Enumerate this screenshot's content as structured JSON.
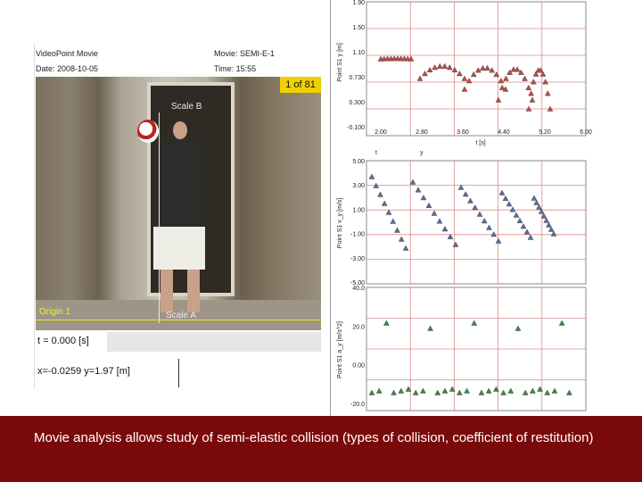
{
  "video": {
    "app_title": "VideoPoint Movie",
    "movie_label": "Movie: SEMI-E-1",
    "date_label": "Date: 2008-10-05",
    "time_label": "Time: 15:55",
    "frame_counter": "1 of 81",
    "scale_top": "Scale B",
    "scale_bottom": "Scale A",
    "origin": "Origin 1",
    "time_readout": "t = 0.000 [s]",
    "coord_readout": "x=-0.0259 y=1.97 [m]"
  },
  "graphs": {
    "top": {
      "ylabel": "Point S1 y [m]",
      "yticks": [
        "1.90",
        "1.50",
        "1.10",
        "0.730",
        "0.300",
        "-0.100"
      ],
      "xticks": [
        "2.00",
        "2.80",
        "3.60",
        "4.40",
        "5.20",
        "6.00"
      ],
      "xlabel": "t [s]",
      "footer_left": "t",
      "footer_right": "y"
    },
    "middle": {
      "ylabel": "Point S1 v_y [m/s]",
      "yticks": [
        "5.00",
        "3.00",
        "1.00",
        "-1.00",
        "-3.00",
        "-5.00"
      ]
    },
    "bottom": {
      "ylabel": "Point S1 a_y [m/s^2]",
      "yticks": [
        "40.0",
        "20.0",
        "0.00",
        "-20.0"
      ]
    }
  },
  "caption": "Movie analysis allows study of semi-elastic collision (types of collision, coefficient of restitution)"
}
